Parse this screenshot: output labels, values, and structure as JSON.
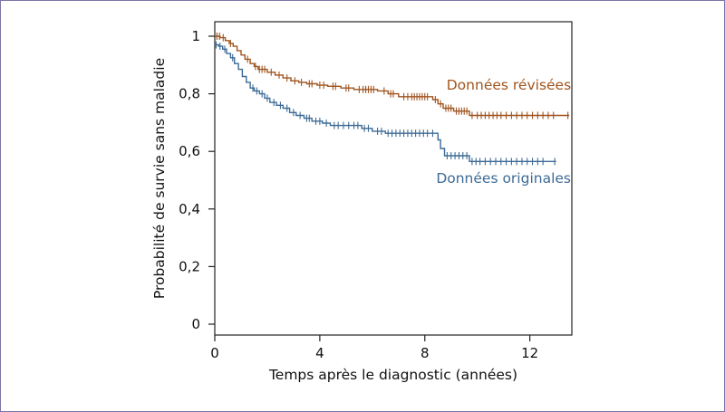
{
  "chart_data": {
    "type": "line",
    "title": "",
    "xlabel": "Temps après le diagnostic (années)",
    "ylabel": "Probabilité de survie sans maladie",
    "xlim": [
      0,
      13.6
    ],
    "ylim": [
      0,
      1
    ],
    "x_ticks": [
      0,
      4,
      8,
      12
    ],
    "x_tick_labels": [
      "0",
      "4",
      "8",
      "12"
    ],
    "y_ticks": [
      0,
      0.2,
      0.4,
      0.6,
      0.8,
      1
    ],
    "y_tick_labels": [
      "0",
      "0,2",
      "0,4",
      "0,6",
      "0,8",
      "1"
    ],
    "grid": false,
    "legend": "inline labels next to curves",
    "series": [
      {
        "name": "Données révisées",
        "color": "#a0541e",
        "label_anchor": [
          11.2,
          0.815
        ],
        "steps": [
          [
            0,
            1.0
          ],
          [
            0.2,
            0.995
          ],
          [
            0.4,
            0.985
          ],
          [
            0.55,
            0.975
          ],
          [
            0.7,
            0.965
          ],
          [
            0.85,
            0.95
          ],
          [
            1.0,
            0.935
          ],
          [
            1.15,
            0.92
          ],
          [
            1.35,
            0.905
          ],
          [
            1.5,
            0.895
          ],
          [
            1.65,
            0.885
          ],
          [
            2.0,
            0.875
          ],
          [
            2.3,
            0.865
          ],
          [
            2.6,
            0.855
          ],
          [
            2.9,
            0.845
          ],
          [
            3.2,
            0.84
          ],
          [
            3.5,
            0.835
          ],
          [
            3.9,
            0.83
          ],
          [
            4.3,
            0.826
          ],
          [
            4.8,
            0.82
          ],
          [
            5.3,
            0.815
          ],
          [
            6.2,
            0.81
          ],
          [
            6.6,
            0.8
          ],
          [
            7.0,
            0.79
          ],
          [
            8.3,
            0.78
          ],
          [
            8.5,
            0.765
          ],
          [
            8.7,
            0.75
          ],
          [
            9.1,
            0.74
          ],
          [
            9.7,
            0.725
          ],
          [
            13.5,
            0.725
          ]
        ],
        "censor_x": [
          0.08,
          0.18,
          0.32,
          0.6,
          1.25,
          1.55,
          1.7,
          1.8,
          1.9,
          2.15,
          2.45,
          2.75,
          3.05,
          3.3,
          3.6,
          3.7,
          4.0,
          4.15,
          4.5,
          4.6,
          5.0,
          5.1,
          5.5,
          5.65,
          5.75,
          5.85,
          5.95,
          6.05,
          6.45,
          6.7,
          6.8,
          7.2,
          7.35,
          7.5,
          7.6,
          7.7,
          7.8,
          7.9,
          8.0,
          8.1,
          8.4,
          8.6,
          8.8,
          8.9,
          9.0,
          9.2,
          9.3,
          9.4,
          9.5,
          9.6,
          9.8,
          10.0,
          10.15,
          10.3,
          10.45,
          10.6,
          10.75,
          10.9,
          11.1,
          11.3,
          11.5,
          11.7,
          11.9,
          12.1,
          12.3,
          12.5,
          12.7,
          12.9,
          13.45
        ]
      },
      {
        "name": "Données originales",
        "color": "#3d6b96",
        "label_anchor": [
          11.0,
          0.49
        ],
        "steps": [
          [
            0,
            0.97
          ],
          [
            0.15,
            0.965
          ],
          [
            0.3,
            0.955
          ],
          [
            0.45,
            0.94
          ],
          [
            0.6,
            0.925
          ],
          [
            0.75,
            0.905
          ],
          [
            0.9,
            0.885
          ],
          [
            1.05,
            0.86
          ],
          [
            1.2,
            0.84
          ],
          [
            1.35,
            0.82
          ],
          [
            1.5,
            0.81
          ],
          [
            1.7,
            0.8
          ],
          [
            1.9,
            0.785
          ],
          [
            2.1,
            0.77
          ],
          [
            2.35,
            0.76
          ],
          [
            2.6,
            0.75
          ],
          [
            2.85,
            0.735
          ],
          [
            3.1,
            0.725
          ],
          [
            3.4,
            0.715
          ],
          [
            3.7,
            0.705
          ],
          [
            4.1,
            0.698
          ],
          [
            4.4,
            0.69
          ],
          [
            5.6,
            0.68
          ],
          [
            6.0,
            0.67
          ],
          [
            6.5,
            0.663
          ],
          [
            8.5,
            0.64
          ],
          [
            8.6,
            0.61
          ],
          [
            8.75,
            0.585
          ],
          [
            9.7,
            0.565
          ],
          [
            13.0,
            0.565
          ]
        ],
        "censor_x": [
          0.05,
          0.2,
          0.38,
          0.68,
          1.45,
          1.6,
          1.8,
          2.0,
          2.25,
          2.5,
          2.75,
          3.0,
          3.25,
          3.5,
          3.6,
          3.85,
          4.0,
          4.25,
          4.55,
          4.7,
          4.9,
          5.1,
          5.3,
          5.45,
          5.7,
          5.85,
          6.2,
          6.35,
          6.6,
          6.75,
          6.9,
          7.05,
          7.2,
          7.35,
          7.5,
          7.65,
          7.8,
          7.95,
          8.1,
          8.3,
          8.85,
          9.0,
          9.15,
          9.3,
          9.45,
          9.6,
          9.8,
          9.95,
          10.1,
          10.3,
          10.5,
          10.7,
          10.9,
          11.1,
          11.3,
          11.5,
          11.7,
          11.9,
          12.1,
          12.3,
          12.5,
          12.95
        ]
      }
    ]
  }
}
